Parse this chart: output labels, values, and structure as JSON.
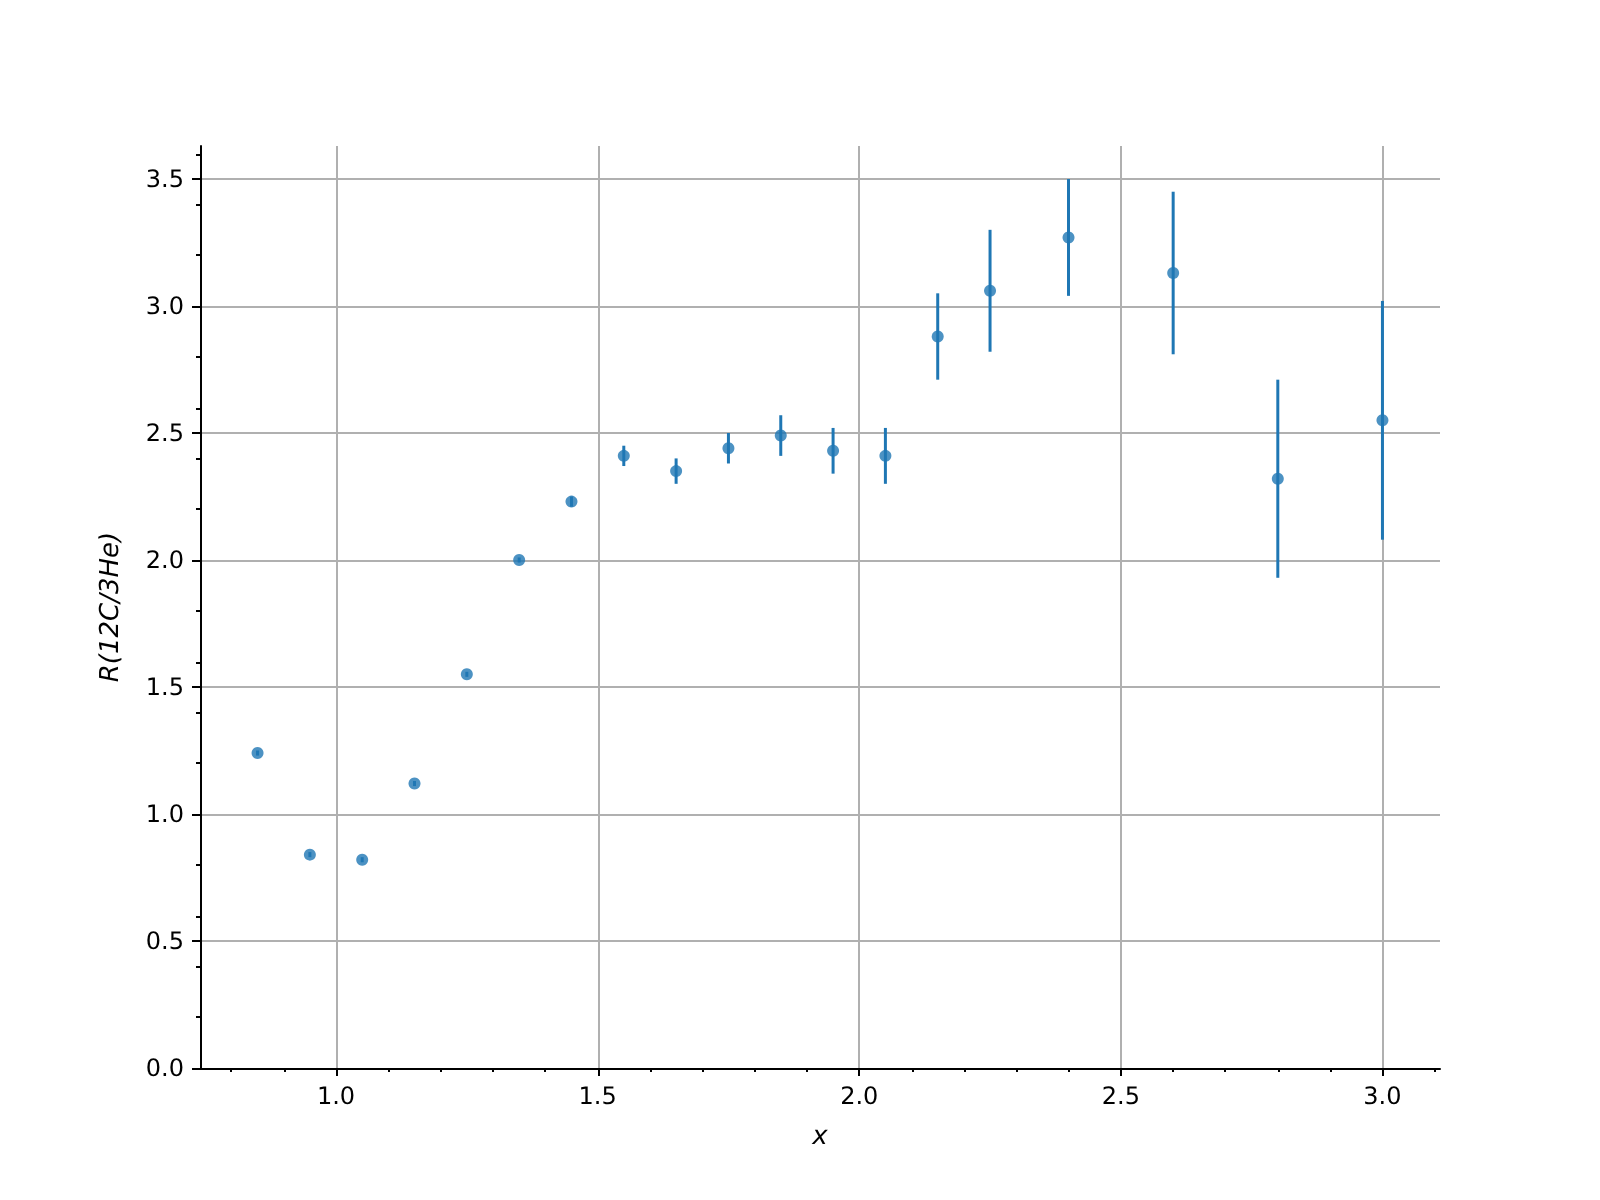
{
  "chart_data": {
    "type": "scatter",
    "xlabel": "x",
    "ylabel": "R(12C/3He)",
    "x": [
      0.85,
      0.95,
      1.05,
      1.15,
      1.25,
      1.35,
      1.45,
      1.55,
      1.65,
      1.75,
      1.85,
      1.95,
      2.05,
      2.15,
      2.25,
      2.4,
      2.6,
      2.8,
      3.0
    ],
    "values": [
      1.24,
      0.84,
      0.82,
      1.12,
      1.55,
      2.0,
      2.23,
      2.41,
      2.35,
      2.44,
      2.49,
      2.43,
      2.41,
      2.88,
      3.06,
      3.27,
      3.13,
      2.32,
      2.55
    ],
    "errors": [
      0.01,
      0.01,
      0.01,
      0.01,
      0.01,
      0.01,
      0.02,
      0.04,
      0.05,
      0.06,
      0.08,
      0.09,
      0.11,
      0.17,
      0.24,
      0.23,
      0.32,
      0.39,
      0.47
    ],
    "color": "#1f77b4",
    "marker": "circle",
    "grid": true,
    "xlim": [
      0.74,
      3.11
    ],
    "xticks": [
      {
        "value": 1,
        "label": "1.0"
      },
      1.5,
      {
        "value": 2,
        "label": "2.0"
      },
      2.5,
      {
        "value": 3,
        "label": "3.0"
      }
    ],
    "ylim": [
      0,
      3.63
    ],
    "yticks": [
      {
        "value": 0,
        "label": "0.0"
      },
      0.5,
      {
        "value": 1,
        "label": "1.0"
      },
      1.5,
      {
        "value": 2,
        "label": "2.0"
      },
      2.5,
      {
        "value": 3,
        "label": "3.0"
      },
      3.5
    ]
  }
}
